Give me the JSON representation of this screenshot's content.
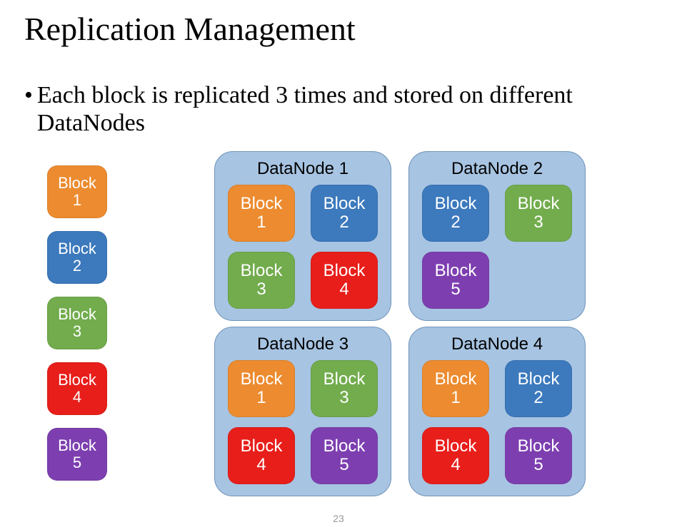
{
  "title": "Replication Management",
  "bullet": "Each block is replicated 3 times and stored on different DataNodes",
  "page_number": "23",
  "colors": {
    "block1": "#ec8b2f",
    "block2": "#3c79bd",
    "block3": "#72ac4d",
    "block4": "#e81e1a",
    "block5": "#7d3fb0",
    "datanode_bg": "#a7c4e2",
    "datanode_border": "#6f93b8",
    "page_bg": "#ffffff",
    "title_color": "#000000",
    "text_color": "#000000",
    "page_number_color": "#999999"
  },
  "block_labels": {
    "1": {
      "name": "Block",
      "num": "1"
    },
    "2": {
      "name": "Block",
      "num": "2"
    },
    "3": {
      "name": "Block",
      "num": "3"
    },
    "4": {
      "name": "Block",
      "num": "4"
    },
    "5": {
      "name": "Block",
      "num": "5"
    }
  },
  "source_column": [
    1,
    2,
    3,
    4,
    5
  ],
  "datanodes": [
    {
      "title": "DataNode 1",
      "blocks": [
        1,
        2,
        3,
        4
      ]
    },
    {
      "title": "DataNode 2",
      "blocks": [
        2,
        3,
        5
      ]
    },
    {
      "title": "DataNode 3",
      "blocks": [
        1,
        3,
        4,
        5
      ]
    },
    {
      "title": "DataNode 4",
      "blocks": [
        1,
        2,
        4,
        5
      ]
    }
  ],
  "typography": {
    "title_fontsize": 46,
    "title_fontfamily": "Times New Roman",
    "bullet_fontsize": 34,
    "bullet_fontfamily": "Times New Roman",
    "block_fontsize_left": 22,
    "block_fontsize_node": 24,
    "block_fontfamily": "Arial",
    "datanode_title_fontsize": 24,
    "datanode_title_fontfamily": "Arial",
    "page_number_fontsize": 14
  },
  "layout": {
    "slide_width": 948,
    "slide_height": 739,
    "block_radius": 14,
    "datanode_radius": 26,
    "left_block_w": 84,
    "left_block_h": 74,
    "node_block_w": 94,
    "node_block_h": 80,
    "datanode_grid_cols": 2,
    "datanode_grid_rows": 2
  }
}
